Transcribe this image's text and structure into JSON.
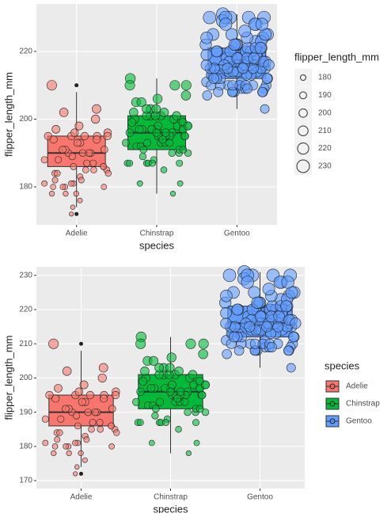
{
  "chart_data": [
    {
      "type": "box",
      "x_label": "species",
      "y_label": "flipper_length_mm",
      "categories": [
        "Adelie",
        "Chinstrap",
        "Gentoo"
      ],
      "ylim": [
        168.8,
        234
      ],
      "yticks": [
        180,
        200,
        220
      ],
      "grid": true,
      "size_legend": {
        "title": "flipper_length_mm",
        "values": [
          180,
          190,
          200,
          210,
          220,
          230
        ]
      },
      "series": [
        {
          "color": "#F8766D",
          "box": {
            "min": 174,
            "q1": 186,
            "median": 190,
            "q3": 195,
            "max": 208,
            "outliers": [
              210,
              172
            ]
          },
          "values": [
            181,
            186,
            195,
            193,
            190,
            181,
            195,
            182,
            191,
            198,
            185,
            195,
            197,
            184,
            194,
            174,
            180,
            189,
            185,
            180,
            187,
            183,
            187,
            172,
            180,
            178,
            178,
            188,
            184,
            195,
            196,
            190,
            180,
            181,
            184,
            182,
            195,
            186,
            196,
            185,
            190,
            191,
            186,
            188,
            190,
            200,
            191,
            193,
            194,
            210,
            202,
            178,
            203,
            176
          ]
        },
        {
          "color": "#00BA38",
          "box": {
            "min": 178,
            "q1": 191,
            "median": 196,
            "q3": 201,
            "max": 212,
            "outliers": []
          },
          "values": [
            192,
            196,
            193,
            188,
            197,
            198,
            178,
            197,
            195,
            198,
            193,
            194,
            185,
            201,
            190,
            201,
            197,
            181,
            190,
            195,
            181,
            191,
            187,
            193,
            195,
            197,
            200,
            200,
            191,
            205,
            187,
            201,
            187,
            203,
            195,
            199,
            195,
            210,
            192,
            205,
            210,
            187,
            196,
            196,
            196,
            201,
            190,
            212,
            187,
            198,
            199,
            201,
            193,
            203,
            187,
            197,
            191,
            203,
            202,
            194,
            206,
            189,
            195,
            207,
            202,
            193,
            210,
            198
          ]
        },
        {
          "color": "#619CFF",
          "box": {
            "min": 203,
            "q1": 212,
            "median": 216,
            "q3": 221,
            "max": 231,
            "outliers": []
          },
          "values": [
            211,
            230,
            210,
            218,
            215,
            210,
            211,
            219,
            209,
            215,
            214,
            216,
            214,
            213,
            210,
            217,
            210,
            221,
            209,
            222,
            218,
            215,
            213,
            215,
            215,
            215,
            216,
            215,
            210,
            220,
            222,
            209,
            207,
            230,
            220,
            220,
            213,
            219,
            208,
            208,
            208,
            225,
            210,
            216,
            222,
            217,
            210,
            225,
            213,
            215,
            210,
            220,
            210,
            225,
            217,
            220,
            208,
            220,
            208,
            224,
            208,
            221,
            214,
            231,
            219,
            230,
            214,
            229,
            220,
            223,
            216,
            221,
            221,
            217,
            216,
            230,
            209,
            220,
            215,
            223,
            212,
            221,
            212,
            224,
            212,
            228,
            218,
            218,
            212,
            230,
            218,
            228,
            212,
            224,
            214,
            226,
            216,
            222,
            203,
            225,
            219,
            228,
            215,
            228,
            216
          ]
        }
      ]
    },
    {
      "type": "box",
      "x_label": "species",
      "y_label": "flipper_length_mm",
      "categories": [
        "Adelie",
        "Chinstrap",
        "Gentoo"
      ],
      "ylim": [
        167.7,
        232.5
      ],
      "yticks": [
        170,
        180,
        190,
        200,
        210,
        220,
        230
      ],
      "grid": true,
      "legend": {
        "title": "species"
      },
      "series": [
        {
          "name": "Adelie",
          "color": "#F8766D",
          "box": {
            "min": 174,
            "q1": 186,
            "median": 190,
            "q3": 195,
            "max": 208,
            "outliers": [
              210,
              172
            ]
          },
          "values": [
            181,
            186,
            195,
            193,
            190,
            181,
            195,
            182,
            191,
            198,
            185,
            195,
            197,
            184,
            194,
            174,
            180,
            189,
            185,
            180,
            187,
            183,
            187,
            172,
            180,
            178,
            178,
            188,
            184,
            195,
            196,
            190,
            180,
            181,
            184,
            182,
            195,
            186,
            196,
            185,
            190,
            191,
            186,
            188,
            190,
            200,
            191,
            193,
            194,
            210,
            202,
            178,
            203,
            176
          ]
        },
        {
          "name": "Chinstrap",
          "color": "#00BA38",
          "box": {
            "min": 178,
            "q1": 191,
            "median": 196,
            "q3": 201,
            "max": 212,
            "outliers": []
          },
          "values": [
            192,
            196,
            193,
            188,
            197,
            198,
            178,
            197,
            195,
            198,
            193,
            194,
            185,
            201,
            190,
            201,
            197,
            181,
            190,
            195,
            181,
            191,
            187,
            193,
            195,
            197,
            200,
            200,
            191,
            205,
            187,
            201,
            187,
            203,
            195,
            199,
            195,
            210,
            192,
            205,
            210,
            187,
            196,
            196,
            196,
            201,
            190,
            212,
            187,
            198,
            199,
            201,
            193,
            203,
            187,
            197,
            191,
            203,
            202,
            194,
            206,
            189,
            195,
            207,
            202,
            193,
            210,
            198
          ]
        },
        {
          "name": "Gentoo",
          "color": "#619CFF",
          "box": {
            "min": 203,
            "q1": 212,
            "median": 216,
            "q3": 221,
            "max": 231,
            "outliers": []
          },
          "values": [
            211,
            230,
            210,
            218,
            215,
            210,
            211,
            219,
            209,
            215,
            214,
            216,
            214,
            213,
            210,
            217,
            210,
            221,
            209,
            222,
            218,
            215,
            213,
            215,
            215,
            215,
            216,
            215,
            210,
            220,
            222,
            209,
            207,
            230,
            220,
            220,
            213,
            219,
            208,
            208,
            208,
            225,
            210,
            216,
            222,
            217,
            210,
            225,
            213,
            215,
            210,
            220,
            210,
            225,
            217,
            220,
            208,
            220,
            208,
            224,
            208,
            221,
            214,
            231,
            219,
            230,
            214,
            229,
            220,
            223,
            216,
            221,
            221,
            217,
            216,
            230,
            209,
            220,
            215,
            223,
            212,
            221,
            212,
            224,
            212,
            228,
            218,
            218,
            212,
            230,
            218,
            228,
            212,
            224,
            214,
            226,
            216,
            222,
            203,
            225,
            219,
            228,
            215,
            228,
            216
          ]
        }
      ]
    }
  ]
}
